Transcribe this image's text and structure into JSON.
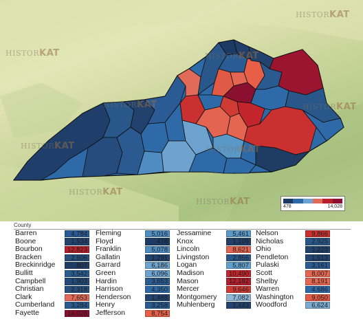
{
  "watermark": {
    "prefix": "HISTOR",
    "suffix": "KAT"
  },
  "legend": {
    "min_label": "478",
    "max_label": "14,028",
    "colors": [
      "#1c3a64",
      "#2e6aa8",
      "#6ea3cf",
      "#e26a58",
      "#b8202c",
      "#8a1030"
    ]
  },
  "table": {
    "header": "County",
    "columns": [
      [
        {
          "name": "Barren",
          "value": "4,784",
          "color": "#2a5b94"
        },
        {
          "name": "Boone",
          "value": "1,534",
          "color": "#23436f"
        },
        {
          "name": "Bourbon",
          "value": "12,823",
          "color": "#b8202c"
        },
        {
          "name": "Bracken",
          "value": "2,606",
          "color": "#28507f"
        },
        {
          "name": "Breckinridge",
          "value": "807",
          "color": "#1f3c64"
        },
        {
          "name": "Bullitt",
          "value": "3,542",
          "color": "#2b5c91"
        },
        {
          "name": "Campbell",
          "value": "1,903",
          "color": "#244a77"
        },
        {
          "name": "Christian",
          "value": "2,318",
          "color": "#26507d"
        },
        {
          "name": "Clark",
          "value": "7,653",
          "color": "#e26a58"
        },
        {
          "name": "Cumberland",
          "value": "3,284",
          "color": "#2a5a8f"
        },
        {
          "name": "Fayette",
          "value": "14,028",
          "color": "#8a1030"
        }
      ],
      [
        {
          "name": "Fleming",
          "value": "5,016",
          "color": "#4f8cc2"
        },
        {
          "name": "Floyd",
          "value": "478",
          "color": "#1c3a64"
        },
        {
          "name": "Franklin",
          "value": "5,078",
          "color": "#4f8cc2"
        },
        {
          "name": "Gallatin",
          "value": "1,291",
          "color": "#22426d"
        },
        {
          "name": "Garrard",
          "value": "6,186",
          "color": "#6ea3cf"
        },
        {
          "name": "Green",
          "value": "6,096",
          "color": "#6ea3cf"
        },
        {
          "name": "Hardin",
          "value": "3,653",
          "color": "#2b5c91"
        },
        {
          "name": "Harrison",
          "value": "4,350",
          "color": "#2e6aa8"
        },
        {
          "name": "Henderson",
          "value": "1,488",
          "color": "#23436f"
        },
        {
          "name": "Henry",
          "value": "3,258",
          "color": "#2a5a8f"
        },
        {
          "name": "Jefferson",
          "value": "8,754",
          "color": "#e75f47"
        }
      ],
      [
        {
          "name": "Jessamine",
          "value": "5,461",
          "color": "#5a98c8"
        },
        {
          "name": "Knox",
          "value": "1,109",
          "color": "#213f69"
        },
        {
          "name": "Lincoln",
          "value": "8,621",
          "color": "#e36450"
        },
        {
          "name": "Livingston",
          "value": "2,856",
          "color": "#2a5789"
        },
        {
          "name": "Logan",
          "value": "5,807",
          "color": "#62a0cc"
        },
        {
          "name": "Madison",
          "value": "10,490",
          "color": "#c2252c"
        },
        {
          "name": "Mason",
          "value": "12,182",
          "color": "#b21e2d"
        },
        {
          "name": "Mercer",
          "value": "9,646",
          "color": "#cf3a34"
        },
        {
          "name": "Montgomery",
          "value": "7,082",
          "color": "#8fb7d8"
        },
        {
          "name": "Muhlenberg",
          "value": "1,443",
          "color": "#23436f"
        }
      ],
      [
        {
          "name": "Nelson",
          "value": "9,866",
          "color": "#c9302f"
        },
        {
          "name": "Nicholas",
          "value": "2,925",
          "color": "#2a5789"
        },
        {
          "name": "Ohio",
          "value": "1,223",
          "color": "#22426d"
        },
        {
          "name": "Pendleton",
          "value": "1,613",
          "color": "#23456f"
        },
        {
          "name": "Pulaski",
          "value": "3,161",
          "color": "#2a5a8f"
        },
        {
          "name": "Scott",
          "value": "8,007",
          "color": "#e46650"
        },
        {
          "name": "Shelby",
          "value": "8,191",
          "color": "#e46650"
        },
        {
          "name": "Warren",
          "value": "4,686",
          "color": "#2e6aa8"
        },
        {
          "name": "Washington",
          "value": "9,050",
          "color": "#e05a46"
        },
        {
          "name": "Woodford",
          "value": "6,624",
          "color": "#7aabd2"
        }
      ]
    ]
  }
}
